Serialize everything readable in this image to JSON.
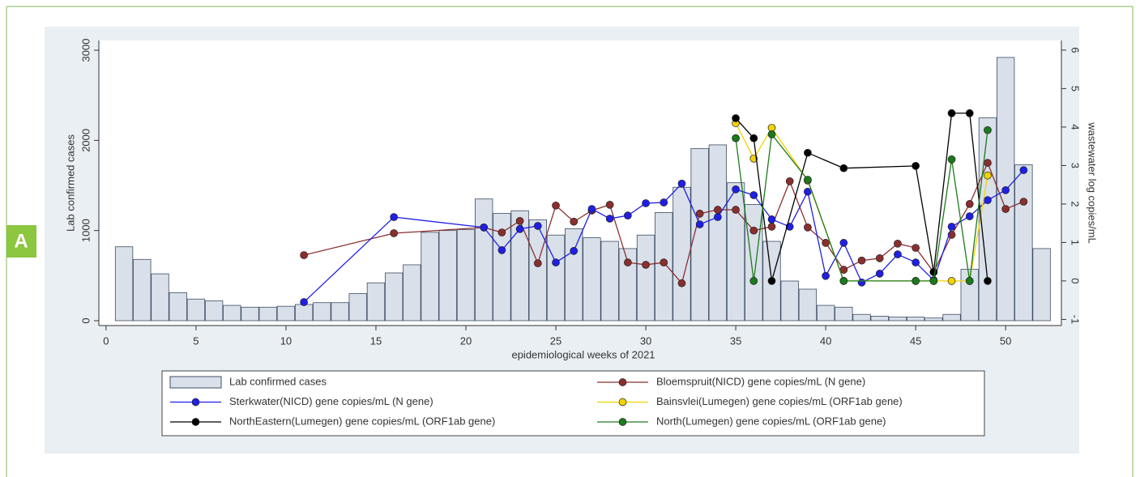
{
  "panel_label": "A",
  "chart_data": {
    "type": "combo",
    "xlabel": "epidemiological weeks of 2021",
    "ylabel": "Lab confirmed cases",
    "y2label": "wastewater log copies/mL",
    "xlim": [
      -0.4,
      53.1
    ],
    "xticks": [
      0,
      5,
      10,
      15,
      20,
      25,
      30,
      35,
      40,
      45,
      50
    ],
    "ylim": [
      -54,
      3108
    ],
    "yticks": [
      0,
      1000,
      2000,
      3000
    ],
    "y2lim": [
      -1.16,
      6.25
    ],
    "y2ticks": [
      -1,
      0,
      1,
      2,
      3,
      4,
      5,
      6
    ],
    "series": [
      {
        "name": "Lab confirmed cases",
        "type": "bar",
        "color": "#d9e0ea",
        "x": [
          1,
          2,
          3,
          4,
          5,
          6,
          7,
          8,
          9,
          10,
          11,
          12,
          13,
          14,
          15,
          16,
          17,
          18,
          19,
          20,
          21,
          22,
          23,
          24,
          25,
          26,
          27,
          28,
          29,
          30,
          31,
          32,
          33,
          34,
          35,
          36,
          37,
          38,
          39,
          40,
          41,
          42,
          43,
          44,
          45,
          46,
          47,
          48,
          49,
          50,
          51,
          52
        ],
        "values": [
          820,
          680,
          520,
          310,
          240,
          220,
          170,
          150,
          150,
          160,
          180,
          200,
          200,
          300,
          420,
          530,
          620,
          980,
          1000,
          1010,
          1350,
          1190,
          1220,
          1120,
          950,
          1020,
          920,
          880,
          800,
          950,
          1200,
          1480,
          1910,
          1950,
          1530,
          1290,
          880,
          440,
          350,
          170,
          150,
          70,
          50,
          40,
          40,
          30,
          70,
          570,
          2250,
          2920,
          1730,
          800
        ]
      },
      {
        "name": "Bloemspruit(NICD) gene copies/mL (N gene)",
        "type": "line",
        "axis": "y2",
        "color": "#8b2e2e",
        "x": [
          11,
          16,
          21,
          22,
          23,
          24,
          25,
          26,
          27,
          28,
          29,
          30,
          31,
          32,
          33,
          34,
          35,
          36,
          37,
          38,
          39,
          40,
          41,
          42,
          43,
          44,
          45,
          46,
          47,
          48,
          49,
          50,
          51
        ],
        "values": [
          0.67,
          1.24,
          1.39,
          1.26,
          1.56,
          0.46,
          1.96,
          1.54,
          1.83,
          1.98,
          0.48,
          0.42,
          0.48,
          -0.06,
          1.75,
          1.85,
          1.85,
          1.31,
          1.41,
          2.59,
          1.39,
          0.99,
          0.29,
          0.53,
          0.59,
          0.97,
          0.86,
          0.23,
          1.2,
          2.0,
          3.07,
          1.87,
          2.06
        ]
      },
      {
        "name": "Sterkwater(NICD) gene copies/mL (N gene)",
        "type": "line",
        "axis": "y2",
        "color": "#1f1fe6",
        "x": [
          11,
          16,
          21,
          22,
          23,
          24,
          25,
          26,
          27,
          28,
          29,
          30,
          31,
          32,
          33,
          34,
          35,
          36,
          37,
          38,
          39,
          40,
          41,
          42,
          43,
          44,
          45,
          46,
          47,
          48,
          49,
          50,
          51
        ],
        "values": [
          -0.55,
          1.66,
          1.39,
          0.8,
          1.35,
          1.43,
          0.48,
          0.78,
          1.87,
          1.62,
          1.7,
          2.02,
          2.04,
          2.53,
          1.47,
          1.66,
          2.38,
          2.23,
          1.6,
          1.41,
          2.32,
          0.13,
          0.99,
          -0.04,
          0.19,
          0.69,
          0.48,
          0.02,
          1.41,
          1.68,
          2.1,
          2.36,
          2.88
        ]
      },
      {
        "name": "Bainsvlei(Lumegen) gene copies/mL (ORF1ab gene)",
        "type": "line",
        "axis": "y2",
        "color": "#f2d200",
        "x": [
          35,
          36,
          37,
          39,
          41,
          45,
          46,
          47,
          48,
          49
        ],
        "values": [
          4.1,
          3.18,
          3.98,
          2.61,
          0,
          0,
          0,
          0,
          0,
          2.74
        ]
      },
      {
        "name": "NorthEastern(Lumegen) gene copies/mL (ORF1ab gene)",
        "type": "line",
        "axis": "y2",
        "color": "#000000",
        "x": [
          35,
          36,
          37,
          39,
          41,
          45,
          46,
          47,
          48,
          49
        ],
        "values": [
          4.23,
          3.71,
          0,
          3.33,
          2.93,
          2.99,
          0.23,
          4.36,
          4.36,
          0
        ]
      },
      {
        "name": "North(Lumegen) gene copies/mL (ORF1ab gene)",
        "type": "line",
        "axis": "y2",
        "color": "#1b7a1b",
        "x": [
          35,
          36,
          37,
          39,
          41,
          45,
          46,
          47,
          48,
          49
        ],
        "values": [
          3.71,
          0,
          3.81,
          2.63,
          0,
          0,
          0,
          3.16,
          0,
          3.92
        ]
      }
    ]
  }
}
